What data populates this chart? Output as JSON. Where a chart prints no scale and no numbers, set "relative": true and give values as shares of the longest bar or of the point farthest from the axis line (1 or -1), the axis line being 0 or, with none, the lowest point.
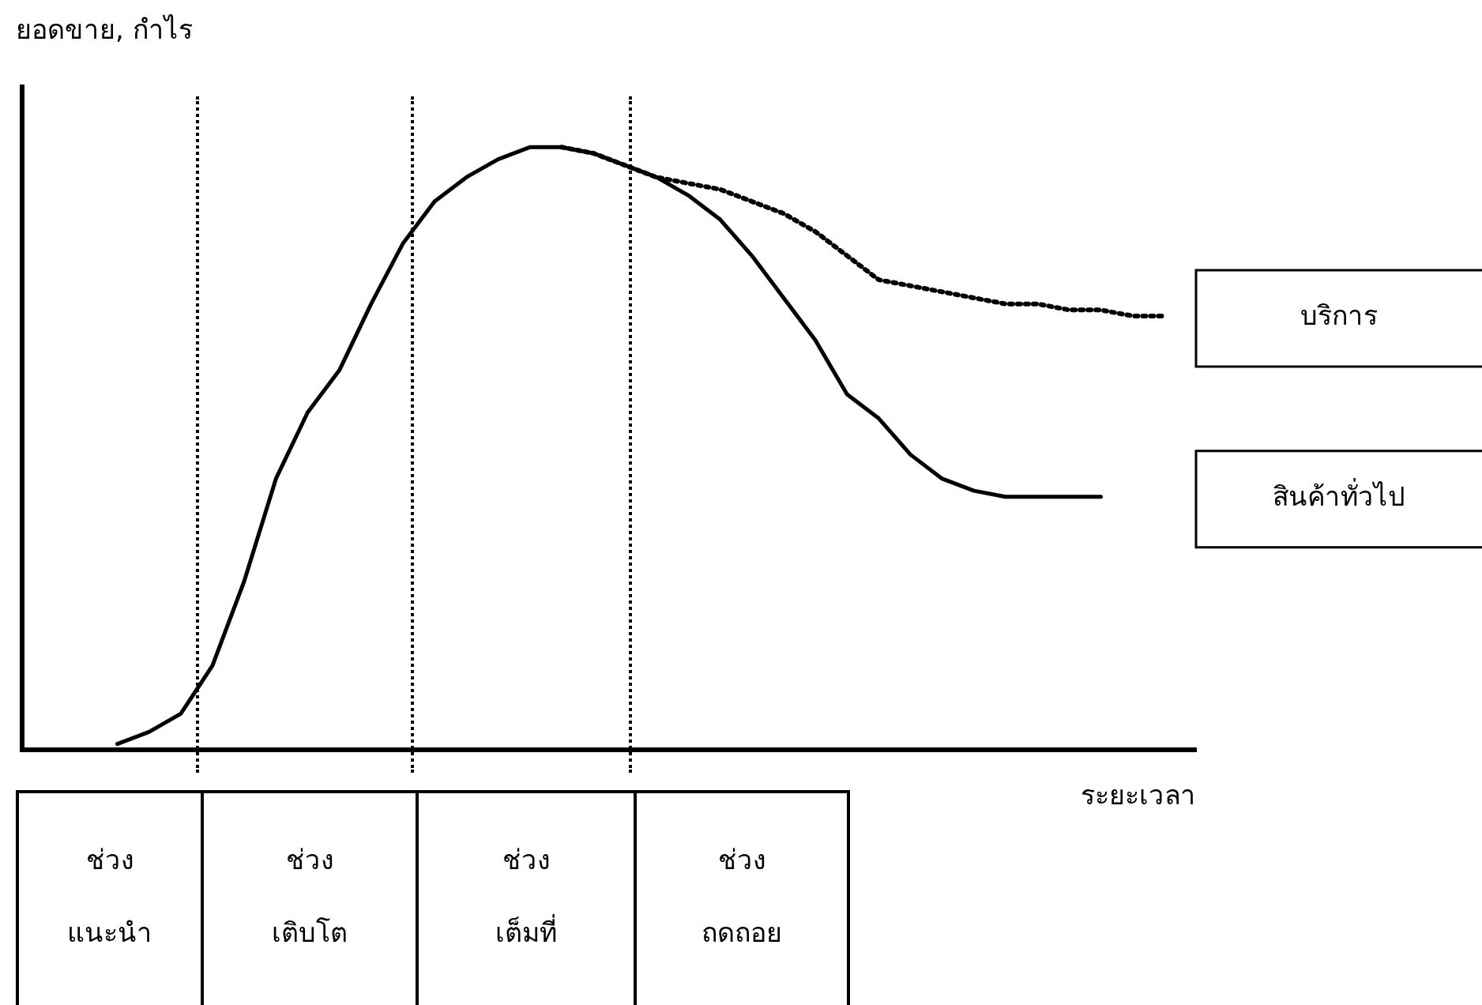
{
  "chart_data": {
    "type": "line",
    "relative": true,
    "ylabel": "ยอดขาย, กำไร",
    "xlabel": "ระยะเวลา",
    "legend": false,
    "marker": "none",
    "categories": [
      null,
      null,
      null,
      null,
      null,
      null,
      null,
      null,
      null,
      null,
      null,
      null,
      null,
      null,
      null,
      null,
      null,
      null,
      null,
      null,
      null,
      null,
      null,
      null,
      null,
      null,
      null,
      null,
      null,
      null,
      null,
      null,
      null,
      null,
      null,
      null,
      null,
      null
    ],
    "series": [
      {
        "name": "บริการ",
        "color": "#000000",
        "line_style": "dotted",
        "values": [
          null,
          null,
          null,
          null,
          null,
          null,
          null,
          null,
          null,
          null,
          null,
          null,
          null,
          null,
          null,
          null,
          null,
          1,
          0.99,
          0.97,
          0.95,
          0.94,
          0.93,
          0.91,
          0.89,
          0.86,
          0.82,
          0.78,
          0.77,
          0.76,
          0.75,
          0.74,
          0.74,
          0.73,
          0.73,
          0.72,
          0.72,
          null
        ]
      },
      {
        "name": "สินค้าทั่วไป",
        "color": "#000000",
        "line_style": "solid",
        "values": [
          null,
          null,
          null,
          0.01,
          0.03,
          0.06,
          0.14,
          0.28,
          0.45,
          0.56,
          0.63,
          0.74,
          0.84,
          0.91,
          0.95,
          0.98,
          1,
          1,
          0.99,
          0.97,
          0.95,
          0.92,
          0.88,
          0.82,
          0.75,
          0.68,
          0.59,
          0.55,
          0.49,
          0.45,
          0.43,
          0.42,
          0.42,
          0.42,
          0.42,
          null,
          null,
          null
        ]
      }
    ],
    "annotations": [
      "ช่วง แนะนำ",
      "ช่วง เติบโต",
      "ช่วง เต็มที่",
      "ช่วง ถดถอย"
    ]
  }
}
